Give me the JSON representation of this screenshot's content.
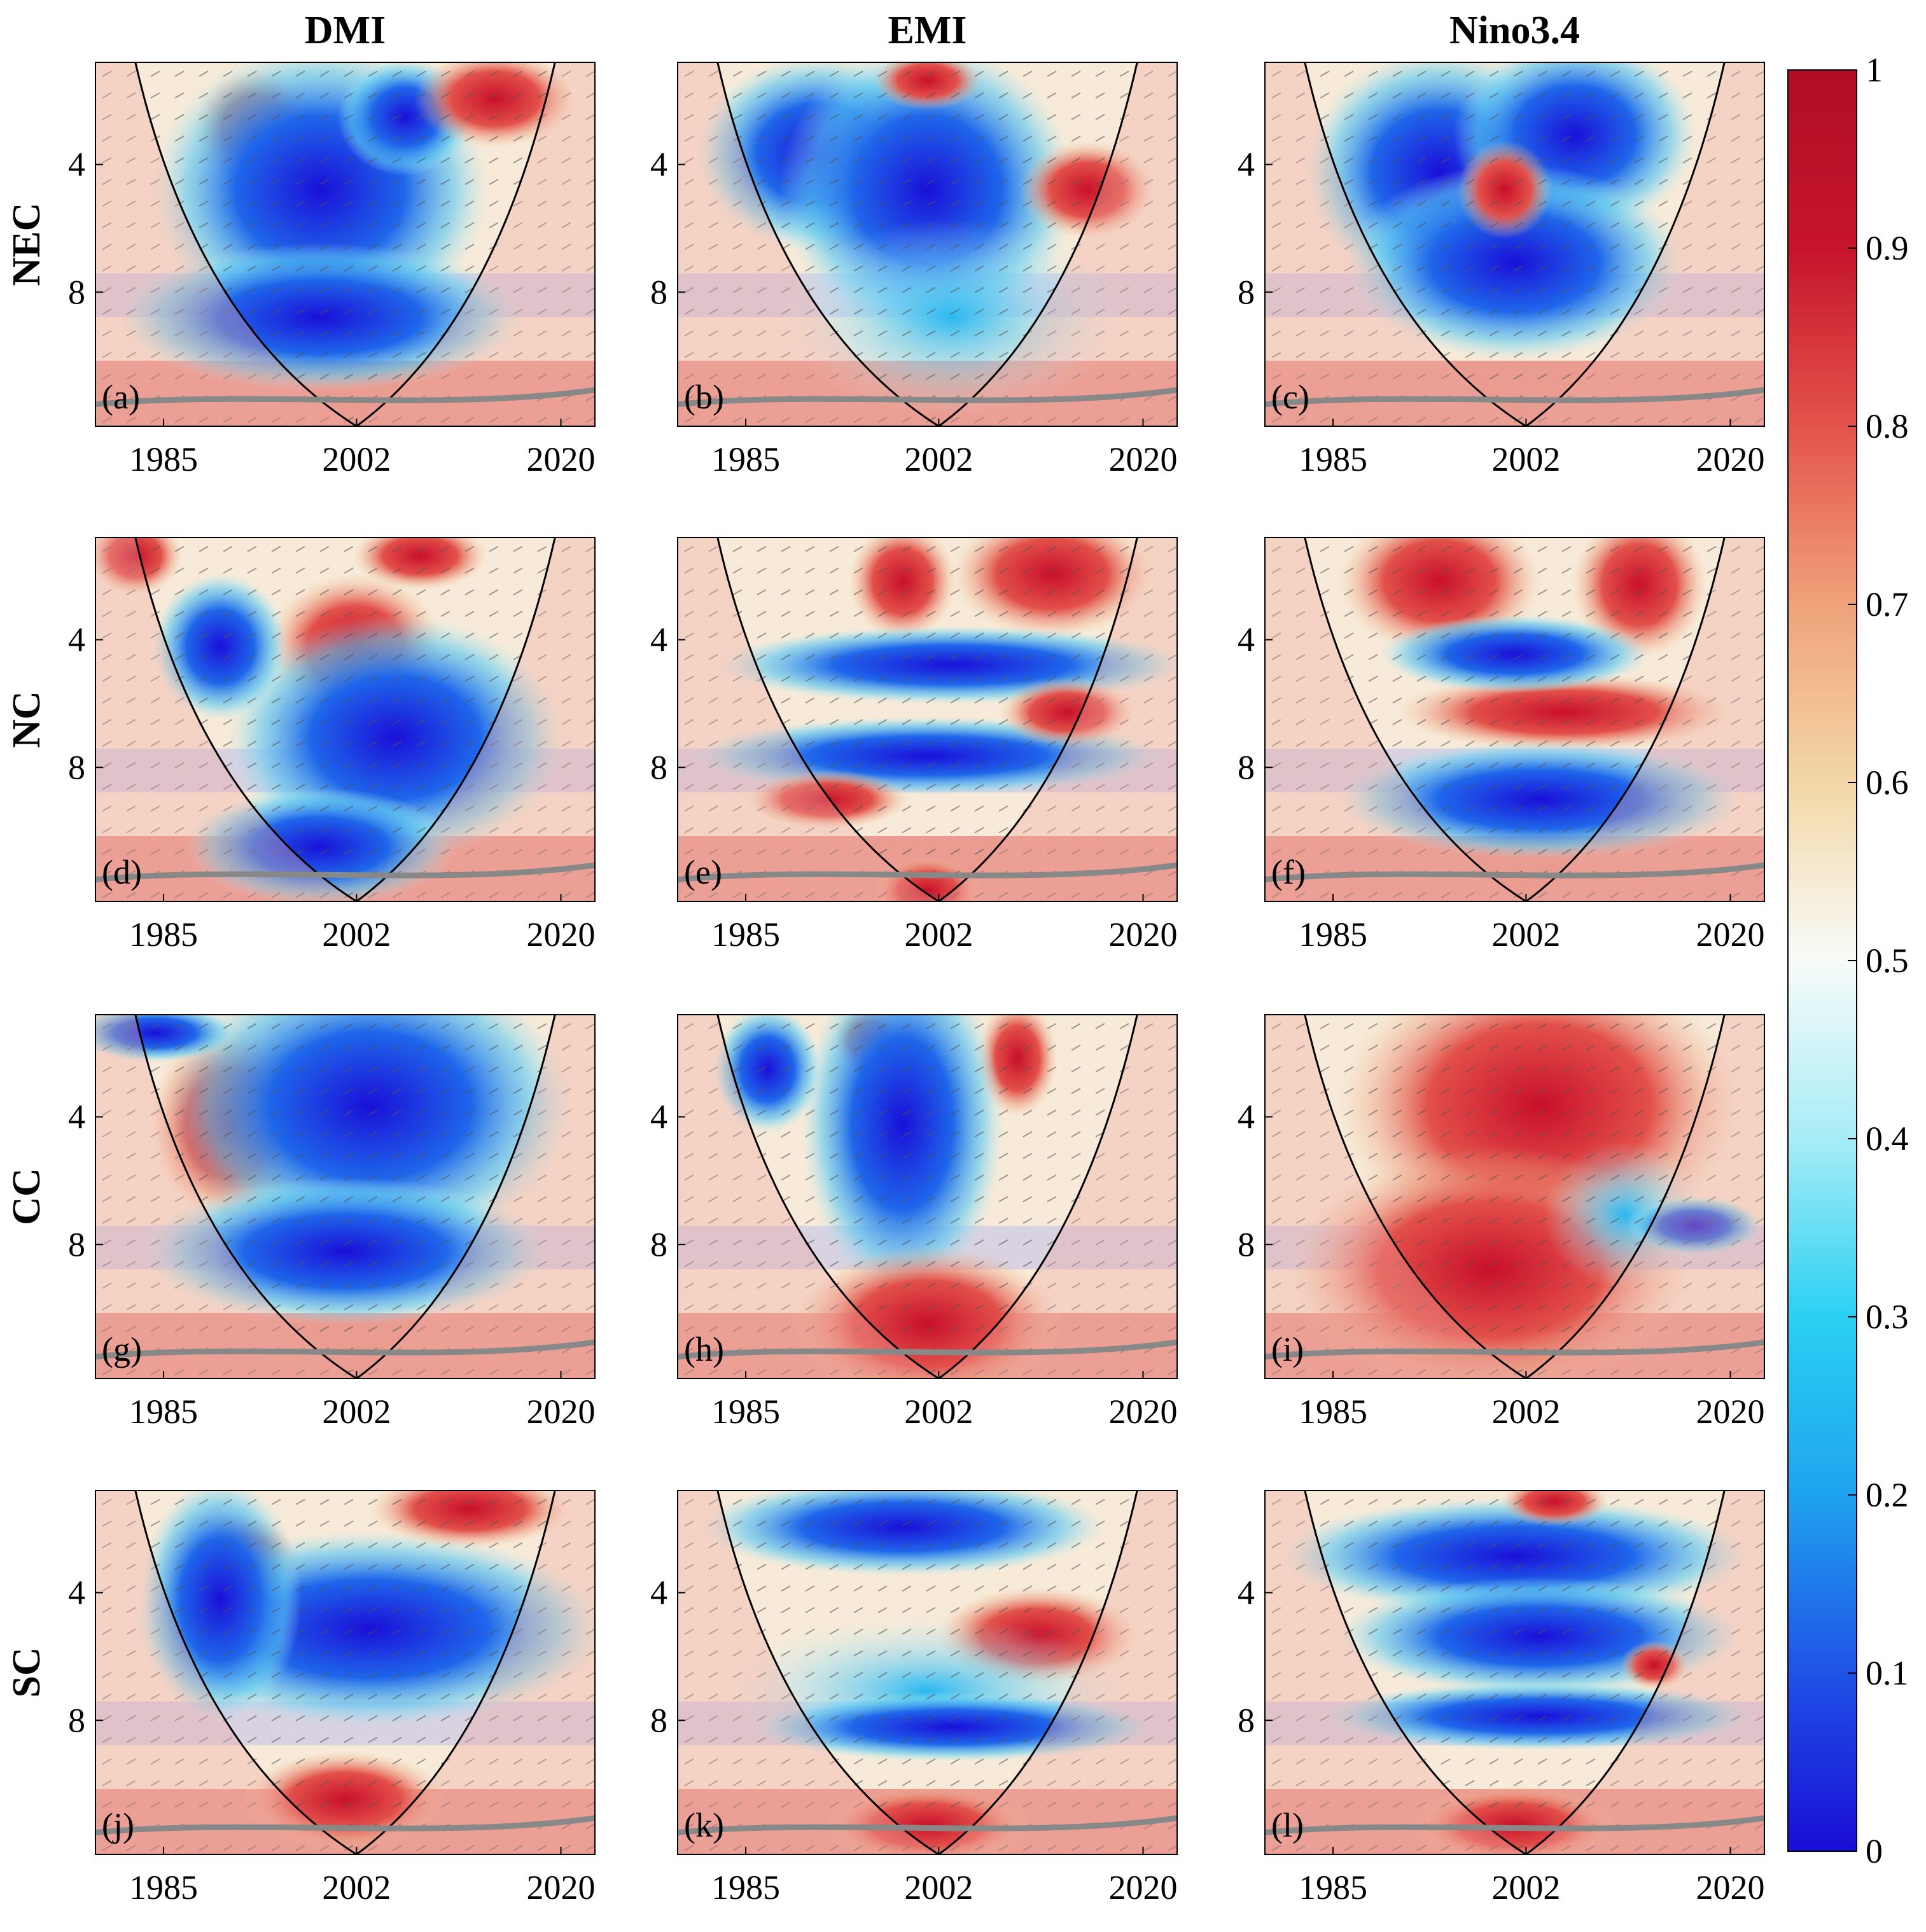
{
  "chart_data": {
    "type": "heatmap",
    "description_kind": "wavelet coherence grid",
    "column_titles": [
      "DMI",
      "EMI",
      "Nino3.4"
    ],
    "row_labels": [
      "NEC",
      "NC",
      "CC",
      "SC"
    ],
    "panel_labels": [
      "(a)",
      "(b)",
      "(c)",
      "(d)",
      "(e)",
      "(f)",
      "(g)",
      "(h)",
      "(i)",
      "(j)",
      "(k)",
      "(l)"
    ],
    "x_ticks": [
      "1985",
      "2002",
      "2020"
    ],
    "x_tick_values": [
      1985,
      2002,
      2020
    ],
    "xlim": [
      1979,
      2023
    ],
    "y_ticks": [
      "4",
      "8"
    ],
    "y_tick_values": [
      4,
      8
    ],
    "ylim": [
      0.8,
      12.2
    ],
    "colorbar": {
      "ticks": [
        "0",
        "0.1",
        "0.2",
        "0.3",
        "0.4",
        "0.5",
        "0.6",
        "0.7",
        "0.8",
        "0.9",
        "1"
      ],
      "range": [
        0,
        1
      ],
      "colors": [
        "#1a0dd6",
        "#1f52e6",
        "#1fa3ee",
        "#2ad0f3",
        "#a8ecf7",
        "#f7fbf8",
        "#f3d7a6",
        "#f0a27a",
        "#e3534a",
        "#c6152b",
        "#b00d26"
      ]
    },
    "cone_color": "#000000",
    "significance_contour_color": "#111111",
    "coi_shading_color": "#e58080"
  }
}
